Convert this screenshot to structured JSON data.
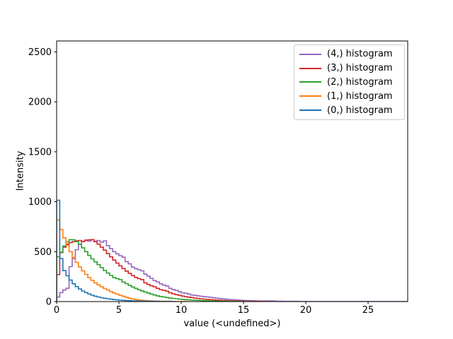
{
  "figure": {
    "background": "#ffffff",
    "xlabel": "value (<undefined>)",
    "ylabel": "Intensity"
  },
  "chart_data": {
    "type": "step-histogram",
    "title": "",
    "xlabel": "value (<undefined>)",
    "ylabel": "Intensity",
    "grid": false,
    "legend_position": "upper-right",
    "xlim": [
      0,
      28.18
    ],
    "ylim": [
      0,
      2610
    ],
    "xticks": [
      0,
      5,
      10,
      15,
      20,
      25
    ],
    "yticks": [
      0,
      500,
      1000,
      1500,
      2000,
      2500
    ],
    "bin_start": 0,
    "bin_width": 0.25,
    "series": [
      {
        "label": "(4,) histogram",
        "color": "#9467bd",
        "counts": [
          45,
          90,
          115,
          133,
          350,
          430,
          520,
          575,
          600,
          612,
          605,
          618,
          605,
          612,
          595,
          608,
          560,
          530,
          500,
          478,
          460,
          445,
          400,
          378,
          345,
          330,
          318,
          308,
          275,
          255,
          232,
          210,
          196,
          178,
          165,
          155,
          132,
          121,
          112,
          98,
          88,
          83,
          76,
          66,
          62,
          57,
          53,
          50,
          46,
          42,
          38,
          34,
          30,
          27,
          24,
          21,
          19,
          17,
          15,
          13,
          11,
          10,
          9,
          8,
          7,
          6,
          6,
          7,
          7,
          6,
          4,
          3,
          3,
          2,
          2,
          2,
          2,
          2,
          1,
          1,
          1,
          1,
          1,
          1,
          1,
          1,
          1,
          1,
          1,
          1,
          1,
          1,
          1,
          1,
          1,
          1,
          1,
          1,
          1,
          1,
          1,
          1,
          1,
          1,
          1,
          1,
          1,
          1,
          1,
          1,
          1,
          1,
          1
        ]
      },
      {
        "label": "(3,) histogram",
        "color": "#d62728",
        "counts": [
          270,
          490,
          545,
          575,
          590,
          600,
          608,
          612,
          600,
          615,
          618,
          620,
          600,
          575,
          545,
          515,
          480,
          448,
          415,
          385,
          358,
          330,
          305,
          282,
          260,
          242,
          230,
          220,
          188,
          172,
          158,
          148,
          132,
          120,
          112,
          105,
          88,
          78,
          70,
          62,
          55,
          49,
          44,
          40,
          35,
          31,
          28,
          25,
          22,
          19,
          17,
          15,
          13,
          11,
          10,
          8,
          7,
          6,
          5,
          4,
          3,
          2,
          2,
          1,
          1,
          1,
          1
        ]
      },
      {
        "label": "(2,) histogram",
        "color": "#2ca02c",
        "counts": [
          450,
          495,
          556,
          598,
          620,
          618,
          600,
          572,
          538,
          500,
          462,
          428,
          398,
          370,
          340,
          312,
          286,
          262,
          240,
          230,
          220,
          196,
          180,
          162,
          146,
          132,
          118,
          107,
          96,
          86,
          75,
          66,
          57,
          50,
          46,
          40,
          36,
          32,
          28,
          25,
          22,
          19,
          17,
          15,
          13,
          12,
          10,
          9,
          8,
          7,
          6,
          5,
          4,
          4,
          3,
          3,
          2,
          2,
          1,
          1,
          1,
          1
        ]
      },
      {
        "label": "(1,) histogram",
        "color": "#ff7f0e",
        "counts": [
          817,
          722,
          638,
          565,
          500,
          443,
          392,
          347,
          307,
          272,
          240,
          213,
          188,
          167,
          148,
          131,
          116,
          100,
          86,
          74,
          63,
          52,
          42,
          33,
          26,
          20,
          16,
          13,
          10,
          8,
          6,
          5,
          4,
          3,
          3,
          2,
          2,
          1,
          1,
          1,
          1,
          1
        ]
      },
      {
        "label": "(0,) histogram",
        "color": "#1f77b4",
        "counts": [
          1015,
          430,
          310,
          258,
          215,
          178,
          150,
          126,
          106,
          90,
          76,
          64,
          54,
          46,
          39,
          33,
          28,
          24,
          20,
          17,
          14,
          12,
          10,
          9,
          7,
          6,
          5,
          4,
          4,
          3,
          3,
          2,
          2,
          1,
          1,
          1,
          1,
          1
        ]
      }
    ]
  }
}
